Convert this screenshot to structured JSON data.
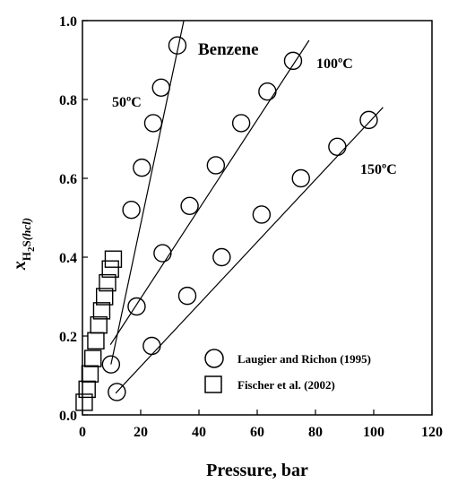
{
  "chart_data": {
    "type": "scatter",
    "title": "",
    "xlabel": "Pressure, bar",
    "ylabel": {
      "main": "x",
      "sub1": "H",
      "sub2": "2",
      "main2": "S",
      "sub3": "(hcl)"
    },
    "xlim": [
      0,
      120
    ],
    "ylim": [
      0.0,
      1.0
    ],
    "x_ticks": [
      "0",
      "20",
      "40",
      "60",
      "80",
      "100",
      "120"
    ],
    "y_ticks": [
      "0.0",
      "0.2",
      "0.4",
      "0.6",
      "0.8",
      "1.0"
    ],
    "grid": false,
    "legend_position": "bottom-right",
    "annotations": {
      "solvent": "Benzene",
      "t50": "50ºC",
      "t100": "100ºC",
      "t150": "150ºC"
    },
    "series": [
      {
        "name": "Laugier and Richon (1995)",
        "marker": "circle",
        "groups": [
          {
            "temperature": "50ºC",
            "points": [
              [
                9.8,
                0.128
              ],
              [
                16.8,
                0.52
              ],
              [
                20.4,
                0.627
              ],
              [
                24.3,
                0.74
              ],
              [
                27.0,
                0.83
              ],
              [
                32.6,
                0.937
              ]
            ]
          },
          {
            "temperature": "100ºC",
            "points": [
              [
                18.6,
                0.275
              ],
              [
                27.5,
                0.41
              ],
              [
                36.8,
                0.53
              ],
              [
                45.8,
                0.633
              ],
              [
                54.5,
                0.74
              ],
              [
                63.5,
                0.82
              ],
              [
                72.3,
                0.898
              ]
            ]
          },
          {
            "temperature": "150ºC",
            "points": [
              [
                11.8,
                0.058
              ],
              [
                23.8,
                0.175
              ],
              [
                36.0,
                0.302
              ],
              [
                47.8,
                0.4
              ],
              [
                61.5,
                0.508
              ],
              [
                75.0,
                0.6
              ],
              [
                87.5,
                0.68
              ],
              [
                98.3,
                0.748
              ]
            ]
          }
        ]
      },
      {
        "name": "Fischer et al. (2002)",
        "marker": "square",
        "groups": [
          {
            "temperature": "50ºC",
            "points": [
              [
                0.6,
                0.032
              ],
              [
                1.6,
                0.065
              ],
              [
                2.6,
                0.104
              ],
              [
                3.6,
                0.143
              ],
              [
                4.6,
                0.188
              ],
              [
                5.6,
                0.228
              ],
              [
                6.6,
                0.264
              ],
              [
                7.6,
                0.3
              ],
              [
                8.6,
                0.335
              ],
              [
                9.6,
                0.37
              ],
              [
                10.6,
                0.395
              ]
            ]
          }
        ]
      }
    ],
    "fit_lines": [
      {
        "temperature": "50ºC",
        "from": [
          9.8,
          0.128
        ],
        "to": [
          34.8,
          1.0
        ]
      },
      {
        "temperature": "100ºC",
        "from": [
          9.6,
          0.178
        ],
        "to": [
          77.8,
          0.95
        ]
      },
      {
        "temperature": "150ºC",
        "from": [
          11.4,
          0.055
        ],
        "to": [
          103.2,
          0.78
        ]
      }
    ]
  }
}
